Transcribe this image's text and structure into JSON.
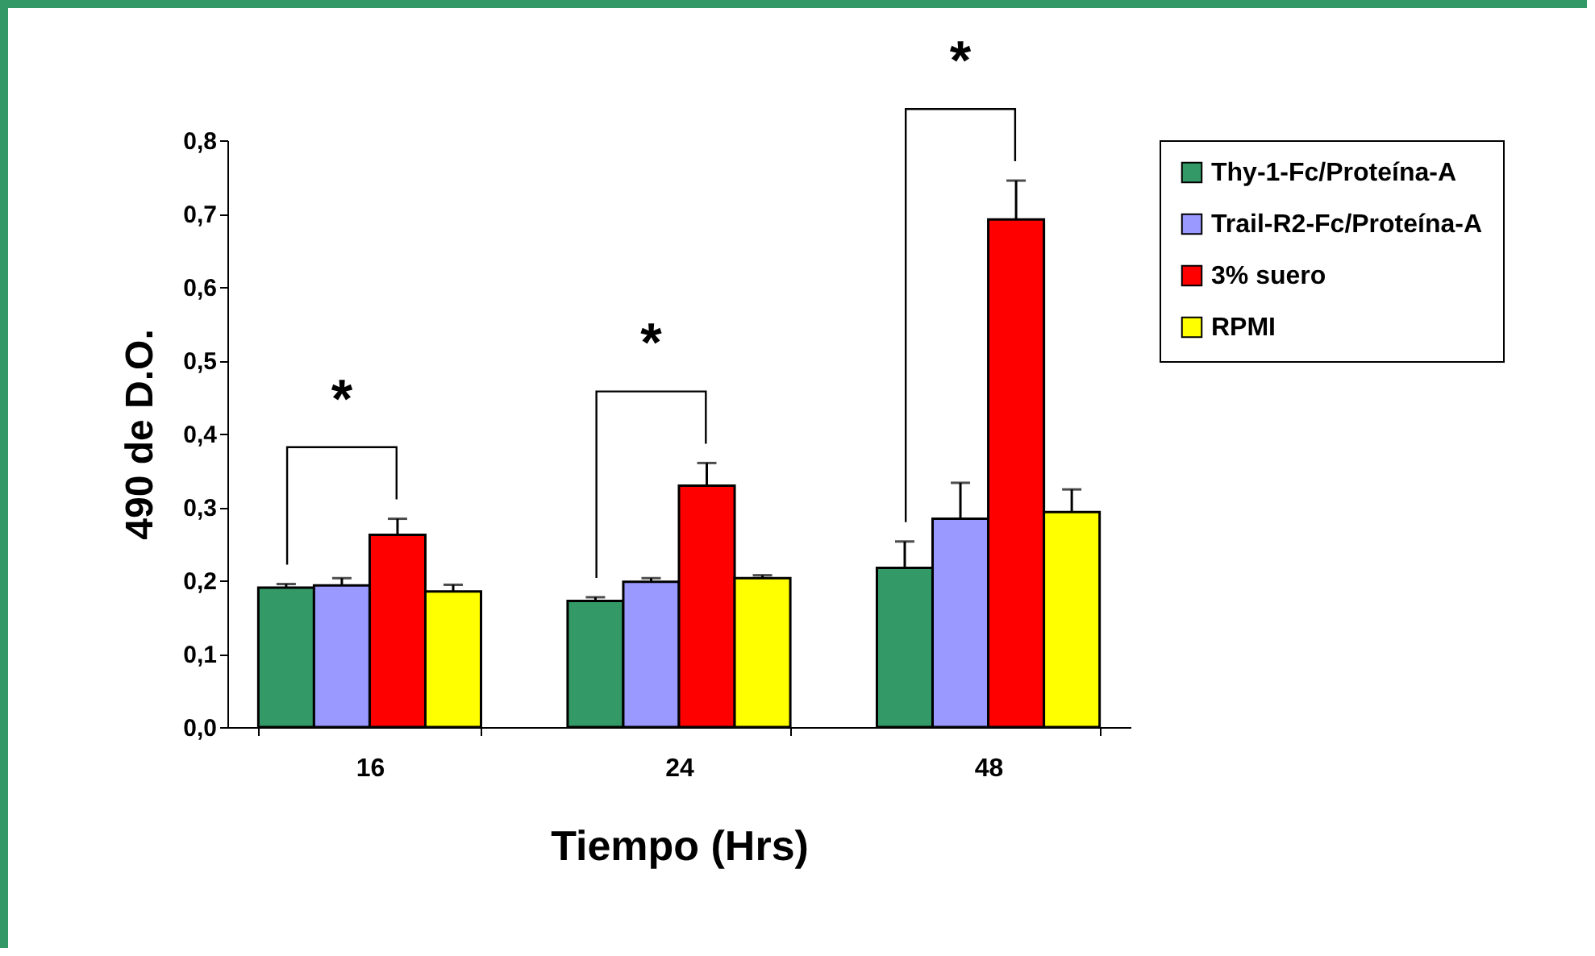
{
  "chart_data": {
    "type": "bar",
    "xlabel": "Tiempo (Hrs)",
    "ylabel": "490 de D.O.",
    "categories": [
      "16",
      "24",
      "48"
    ],
    "series": [
      {
        "name": "Thy-1-Fc/Proteína-A",
        "color": "#339966",
        "values": [
          0.19,
          0.172,
          0.217
        ],
        "errors": [
          [
            0.19,
            0.195
          ],
          [
            0.172,
            0.177
          ],
          [
            0.217,
            0.253
          ]
        ]
      },
      {
        "name": "Trail-R2-Fc/Proteína-A",
        "color": "#9999ff",
        "values": [
          0.193,
          0.198,
          0.284
        ],
        "errors": [
          [
            0.193,
            0.203
          ],
          [
            0.198,
            0.203
          ],
          [
            0.284,
            0.333
          ]
        ]
      },
      {
        "name": "3% suero",
        "color": "#ff0000",
        "values": [
          0.262,
          0.329,
          0.692
        ],
        "errors": [
          [
            0.262,
            0.284
          ],
          [
            0.329,
            0.36
          ],
          [
            0.692,
            0.745
          ]
        ]
      },
      {
        "name": "RPMI",
        "color": "#ffff00",
        "values": [
          0.185,
          0.203,
          0.293
        ],
        "errors": [
          [
            0.185,
            0.194
          ],
          [
            0.203,
            0.207
          ],
          [
            0.293,
            0.324
          ]
        ]
      }
    ],
    "ylim": [
      0,
      0.8
    ],
    "yticks": [
      {
        "value": 0,
        "label": "0,0"
      },
      {
        "value": 0.1,
        "label": "0,1"
      },
      {
        "value": 0.2,
        "label": "0,2"
      },
      {
        "value": 0.3,
        "label": "0,3"
      },
      {
        "value": 0.4,
        "label": "0,4"
      },
      {
        "value": 0.5,
        "label": "0,5"
      },
      {
        "value": 0.6,
        "label": "0,6"
      },
      {
        "value": 0.7,
        "label": "0,7"
      },
      {
        "value": 0.8,
        "label": "0,8"
      }
    ],
    "legend": "right",
    "grid": false,
    "annotations": [
      "*",
      "*",
      "*"
    ]
  }
}
